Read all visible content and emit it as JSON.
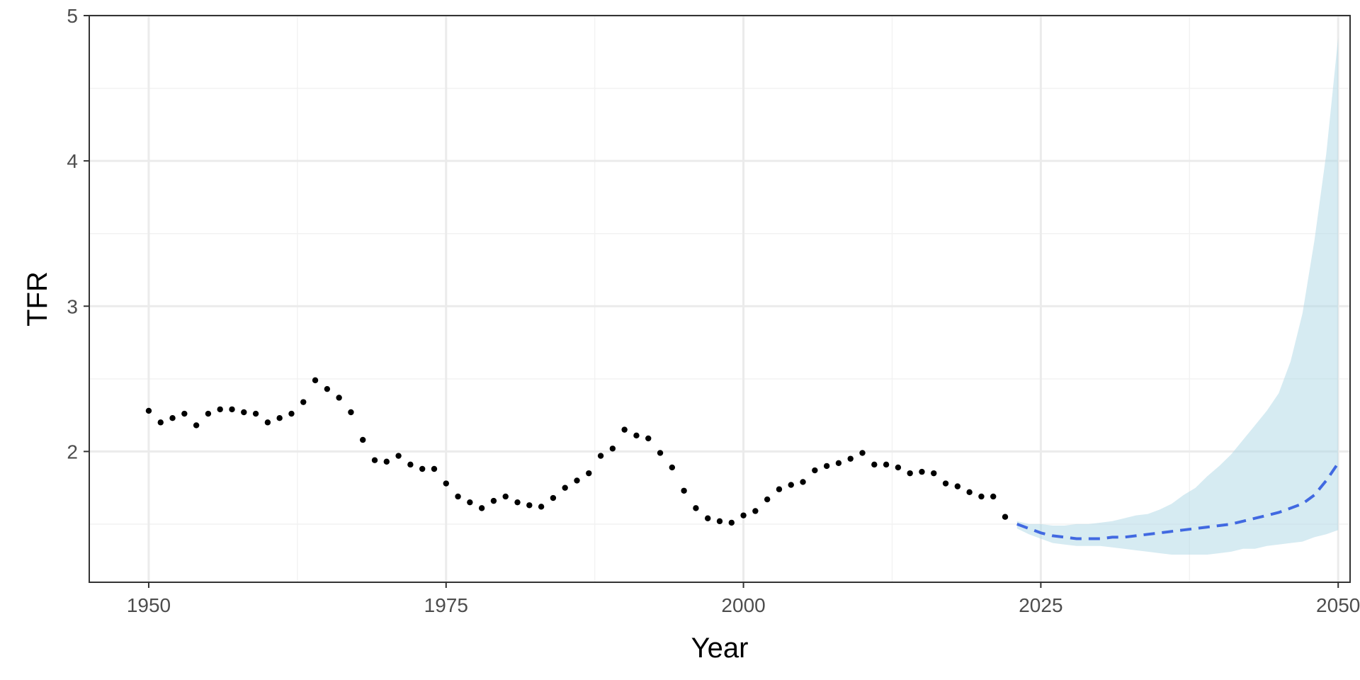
{
  "chart_data": {
    "type": "line",
    "xlabel": "Year",
    "ylabel": "TFR",
    "xlim": [
      1945,
      2051
    ],
    "ylim": [
      1.1,
      5.0
    ],
    "x_ticks": [
      1950,
      1975,
      2000,
      2025,
      2050
    ],
    "x_tick_labels": [
      "1950",
      "1975",
      "2000",
      "2025",
      "2050"
    ],
    "x_minor_ticks": [
      1962.5,
      1987.5,
      2012.5,
      2037.5
    ],
    "y_ticks": [
      2,
      3,
      4,
      5
    ],
    "y_tick_labels": [
      "2",
      "3",
      "4",
      "5"
    ],
    "y_minor_ticks": [
      1.5,
      2.5,
      3.5,
      4.5
    ],
    "grid": true,
    "legend": "none",
    "colors": {
      "observed": "#000000",
      "forecast": "#4169e1",
      "interval": "#add8e6"
    },
    "series": [
      {
        "style": "points",
        "x": [
          1950,
          1951,
          1952,
          1953,
          1954,
          1955,
          1956,
          1957,
          1958,
          1959,
          1960,
          1961,
          1962,
          1963,
          1964,
          1965,
          1966,
          1967,
          1968,
          1969,
          1970,
          1971,
          1972,
          1973,
          1974,
          1975,
          1976,
          1977,
          1978,
          1979,
          1980,
          1981,
          1982,
          1983,
          1984,
          1985,
          1986,
          1987,
          1988,
          1989,
          1990,
          1991,
          1992,
          1993,
          1994,
          1995,
          1996,
          1997,
          1998,
          1999,
          2000,
          2001,
          2002,
          2003,
          2004,
          2005,
          2006,
          2007,
          2008,
          2009,
          2010,
          2011,
          2012,
          2013,
          2014,
          2015,
          2016,
          2017,
          2018,
          2019,
          2020,
          2021,
          2022
        ],
        "y": [
          2.28,
          2.2,
          2.23,
          2.26,
          2.18,
          2.26,
          2.29,
          2.29,
          2.27,
          2.26,
          2.2,
          2.23,
          2.26,
          2.34,
          2.49,
          2.43,
          2.37,
          2.27,
          2.08,
          1.94,
          1.93,
          1.97,
          1.91,
          1.88,
          1.88,
          1.78,
          1.69,
          1.65,
          1.61,
          1.66,
          1.69,
          1.65,
          1.63,
          1.62,
          1.68,
          1.75,
          1.8,
          1.85,
          1.97,
          2.02,
          2.15,
          2.11,
          2.09,
          1.99,
          1.89,
          1.73,
          1.61,
          1.54,
          1.52,
          1.51,
          1.56,
          1.59,
          1.67,
          1.74,
          1.77,
          1.79,
          1.87,
          1.9,
          1.92,
          1.95,
          1.99,
          1.91,
          1.91,
          1.89,
          1.85,
          1.86,
          1.85,
          1.78,
          1.76,
          1.72,
          1.69,
          1.69,
          1.55
        ]
      },
      {
        "style": "dashed-line",
        "x": [
          2023,
          2024,
          2025,
          2026,
          2027,
          2028,
          2029,
          2030,
          2031,
          2032,
          2033,
          2034,
          2035,
          2036,
          2037,
          2038,
          2039,
          2040,
          2041,
          2042,
          2043,
          2044,
          2045,
          2046,
          2047,
          2048,
          2049,
          2050
        ],
        "y": [
          1.5,
          1.47,
          1.44,
          1.42,
          1.41,
          1.4,
          1.4,
          1.4,
          1.41,
          1.41,
          1.42,
          1.43,
          1.44,
          1.45,
          1.46,
          1.47,
          1.48,
          1.49,
          1.5,
          1.52,
          1.54,
          1.56,
          1.58,
          1.61,
          1.64,
          1.7,
          1.8,
          1.92
        ]
      },
      {
        "style": "band",
        "x": [
          2023,
          2024,
          2025,
          2026,
          2027,
          2028,
          2029,
          2030,
          2031,
          2032,
          2033,
          2034,
          2035,
          2036,
          2037,
          2038,
          2039,
          2040,
          2041,
          2042,
          2043,
          2044,
          2045,
          2046,
          2047,
          2048,
          2049,
          2050
        ],
        "lower": [
          1.47,
          1.43,
          1.4,
          1.37,
          1.36,
          1.35,
          1.35,
          1.35,
          1.34,
          1.33,
          1.32,
          1.31,
          1.3,
          1.29,
          1.29,
          1.29,
          1.29,
          1.3,
          1.31,
          1.33,
          1.33,
          1.35,
          1.36,
          1.37,
          1.38,
          1.41,
          1.43,
          1.46
        ],
        "upper": [
          1.52,
          1.5,
          1.5,
          1.49,
          1.49,
          1.5,
          1.5,
          1.51,
          1.52,
          1.54,
          1.56,
          1.57,
          1.6,
          1.64,
          1.7,
          1.75,
          1.83,
          1.9,
          1.98,
          2.08,
          2.18,
          2.28,
          2.4,
          2.62,
          2.95,
          3.45,
          4.05,
          4.85
        ]
      }
    ]
  }
}
